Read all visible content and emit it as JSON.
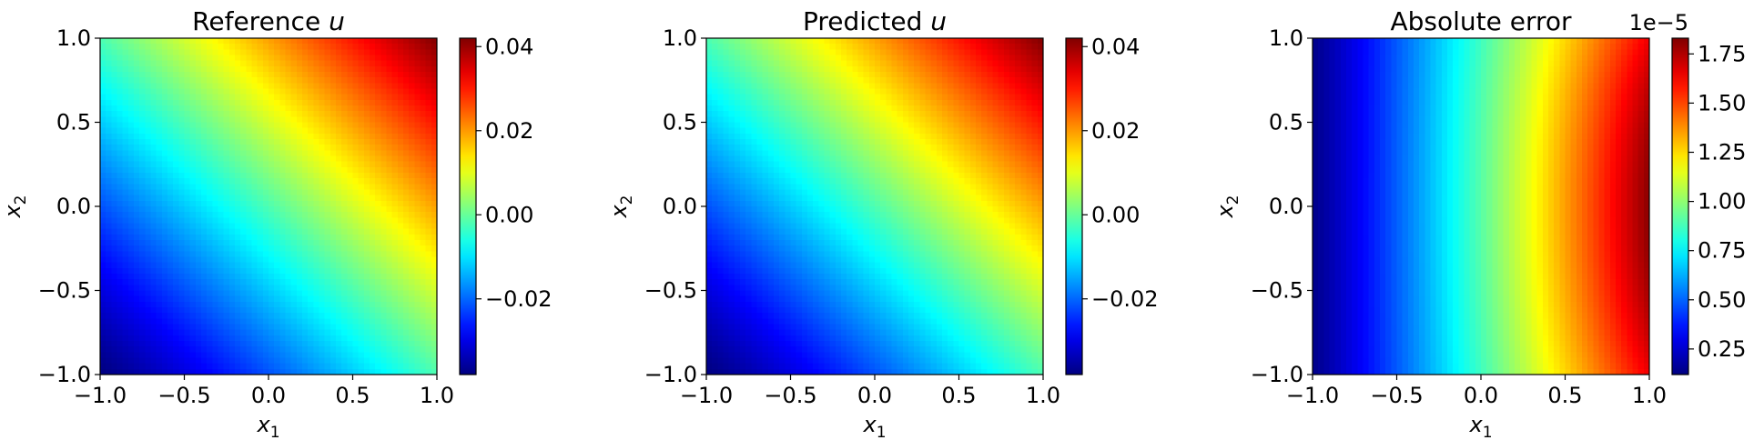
{
  "chart_data": [
    {
      "type": "heatmap",
      "title": "Reference",
      "title_var": "u",
      "xlabel": "x",
      "xlabel_sub": "1",
      "ylabel": "x",
      "ylabel_sub": "2",
      "xlim": [
        -1.0,
        1.0
      ],
      "ylim": [
        -1.0,
        1.0
      ],
      "x_ticks": [
        "−1.0",
        "−0.5",
        "0.0",
        "0.5",
        "1.0"
      ],
      "y_ticks": [
        "−1.0",
        "−0.5",
        "0.0",
        "0.5",
        "1.0"
      ],
      "field": "smooth diagonal gradient increasing toward the top-right corner",
      "colormap": "jet",
      "colorbar": {
        "range": [
          -0.038,
          0.042
        ],
        "ticks": [
          -0.02,
          0.0,
          0.02,
          0.04
        ],
        "tick_labels": [
          "−0.02",
          "0.00",
          "0.02",
          "0.04"
        ],
        "offset_label": ""
      }
    },
    {
      "type": "heatmap",
      "title": "Predicted",
      "title_var": "u",
      "xlabel": "x",
      "xlabel_sub": "1",
      "ylabel": "x",
      "ylabel_sub": "2",
      "xlim": [
        -1.0,
        1.0
      ],
      "ylim": [
        -1.0,
        1.0
      ],
      "x_ticks": [
        "−1.0",
        "−0.5",
        "0.0",
        "0.5",
        "1.0"
      ],
      "y_ticks": [
        "−1.0",
        "−0.5",
        "0.0",
        "0.5",
        "1.0"
      ],
      "field": "smooth diagonal gradient increasing toward the top-right corner",
      "colormap": "jet",
      "colorbar": {
        "range": [
          -0.038,
          0.042
        ],
        "ticks": [
          -0.02,
          0.0,
          0.02,
          0.04
        ],
        "tick_labels": [
          "−0.02",
          "0.00",
          "0.02",
          "0.04"
        ],
        "offset_label": ""
      }
    },
    {
      "type": "heatmap",
      "title": "Absolute error",
      "title_var": "",
      "xlabel": "x",
      "xlabel_sub": "1",
      "ylabel": "x",
      "ylabel_sub": "2",
      "xlim": [
        -1.0,
        1.0
      ],
      "ylim": [
        -1.0,
        1.0
      ],
      "x_ticks": [
        "−1.0",
        "−0.5",
        "0.0",
        "0.5",
        "1.0"
      ],
      "y_ticks": [
        "−1.0",
        "−0.5",
        "0.0",
        "0.5",
        "1.0"
      ],
      "field": "mostly horizontal gradient increasing from left to right, curved bands near the right edge",
      "colormap": "jet",
      "colorbar": {
        "range": [
          0.12,
          1.83
        ],
        "ticks": [
          0.25,
          0.5,
          0.75,
          1.0,
          1.25,
          1.5,
          1.75
        ],
        "tick_labels": [
          "0.25",
          "0.50",
          "0.75",
          "1.00",
          "1.25",
          "1.50",
          "1.75"
        ],
        "offset_label": "1e−5"
      }
    }
  ]
}
